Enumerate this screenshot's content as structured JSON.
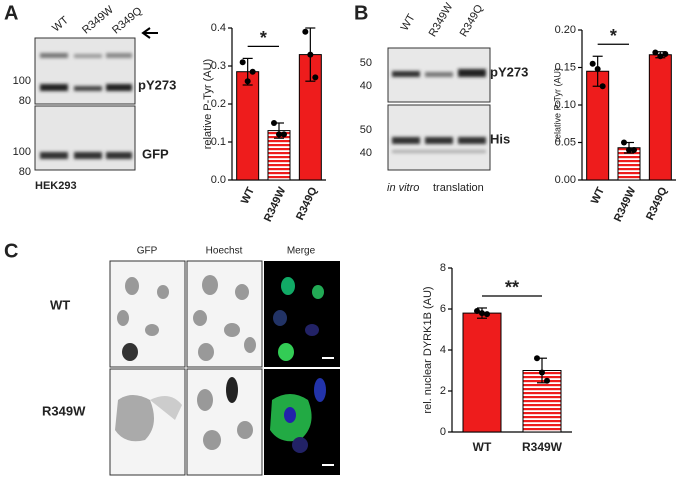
{
  "panel_labels": [
    "A",
    "B",
    "C"
  ],
  "blot_a": {
    "lanes": [
      "WT",
      "R349W",
      "R349Q"
    ],
    "markers_top": [
      "100",
      "80"
    ],
    "markers_bottom": [
      "100",
      "80"
    ],
    "bands": [
      "pY273",
      "GFP"
    ],
    "cell_line": "HEK293"
  },
  "blot_b": {
    "lanes": [
      "WT",
      "R349W",
      "R349Q"
    ],
    "markers_top": [
      "50",
      "40"
    ],
    "markers_bottom": [
      "50",
      "40"
    ],
    "bands": [
      "pY273",
      "His"
    ],
    "caption_italic": "in vitro",
    "caption": "translation"
  },
  "microscopy": {
    "columns": [
      "GFP",
      "Hoechst",
      "Merge"
    ],
    "rows": [
      "WT",
      "R349W"
    ]
  },
  "chart_data": [
    {
      "type": "bar",
      "ylabel": "relative P-Tyr (AU)",
      "categories": [
        "WT",
        "R349W",
        "R349Q"
      ],
      "values": [
        0.285,
        0.13,
        0.33
      ],
      "errors": [
        0.035,
        0.02,
        0.07
      ],
      "points": [
        [
          0.31,
          0.26,
          0.285
        ],
        [
          0.15,
          0.12,
          0.12
        ],
        [
          0.39,
          0.33,
          0.27
        ]
      ],
      "patterns": [
        "solid",
        "horizontal-lines",
        "solid"
      ],
      "color": "#ee1c1c",
      "ylim": [
        0,
        0.4
      ],
      "yticks": [
        {
          "value": 0,
          "label": "0.0"
        },
        0.1,
        0.2,
        0.3,
        0.4
      ],
      "significance": {
        "label": "*",
        "pair": [
          "WT",
          "R349W"
        ]
      }
    },
    {
      "type": "bar",
      "ylabel": "relative P-Tyr (AU)",
      "categories": [
        "WT",
        "R349W",
        "R349Q"
      ],
      "values": [
        0.145,
        0.043,
        0.167
      ],
      "errors": [
        0.02,
        0.007,
        0.004
      ],
      "points": [
        [
          0.155,
          0.148,
          0.125
        ],
        [
          0.05,
          0.04,
          0.04
        ],
        [
          0.17,
          0.165,
          0.168
        ]
      ],
      "patterns": [
        "solid",
        "horizontal-lines",
        "solid"
      ],
      "color": "#ee1c1c",
      "ylim": [
        0,
        0.2
      ],
      "yticks": [
        {
          "value": 0,
          "label": "0.00"
        },
        0.05,
        {
          "value": 0.1,
          "label": "0.10"
        },
        0.15,
        {
          "value": 0.2,
          "label": "0.20"
        }
      ],
      "significance": {
        "label": "*",
        "pair": [
          "WT",
          "R349W"
        ]
      }
    },
    {
      "type": "bar",
      "ylabel": "rel. nuclear DYRK1B (AU)",
      "categories": [
        "WT",
        "R349W"
      ],
      "values": [
        5.8,
        3.0
      ],
      "errors": [
        0.25,
        0.6
      ],
      "points": [
        [
          5.9,
          5.8,
          5.75
        ],
        [
          3.6,
          2.9,
          2.5
        ]
      ],
      "patterns": [
        "solid",
        "horizontal-lines"
      ],
      "color": "#ee1c1c",
      "ylim": [
        0,
        8
      ],
      "yticks": [
        0,
        2,
        4,
        6,
        8
      ],
      "significance": {
        "label": "**",
        "pair": [
          "WT",
          "R349W"
        ]
      }
    }
  ]
}
